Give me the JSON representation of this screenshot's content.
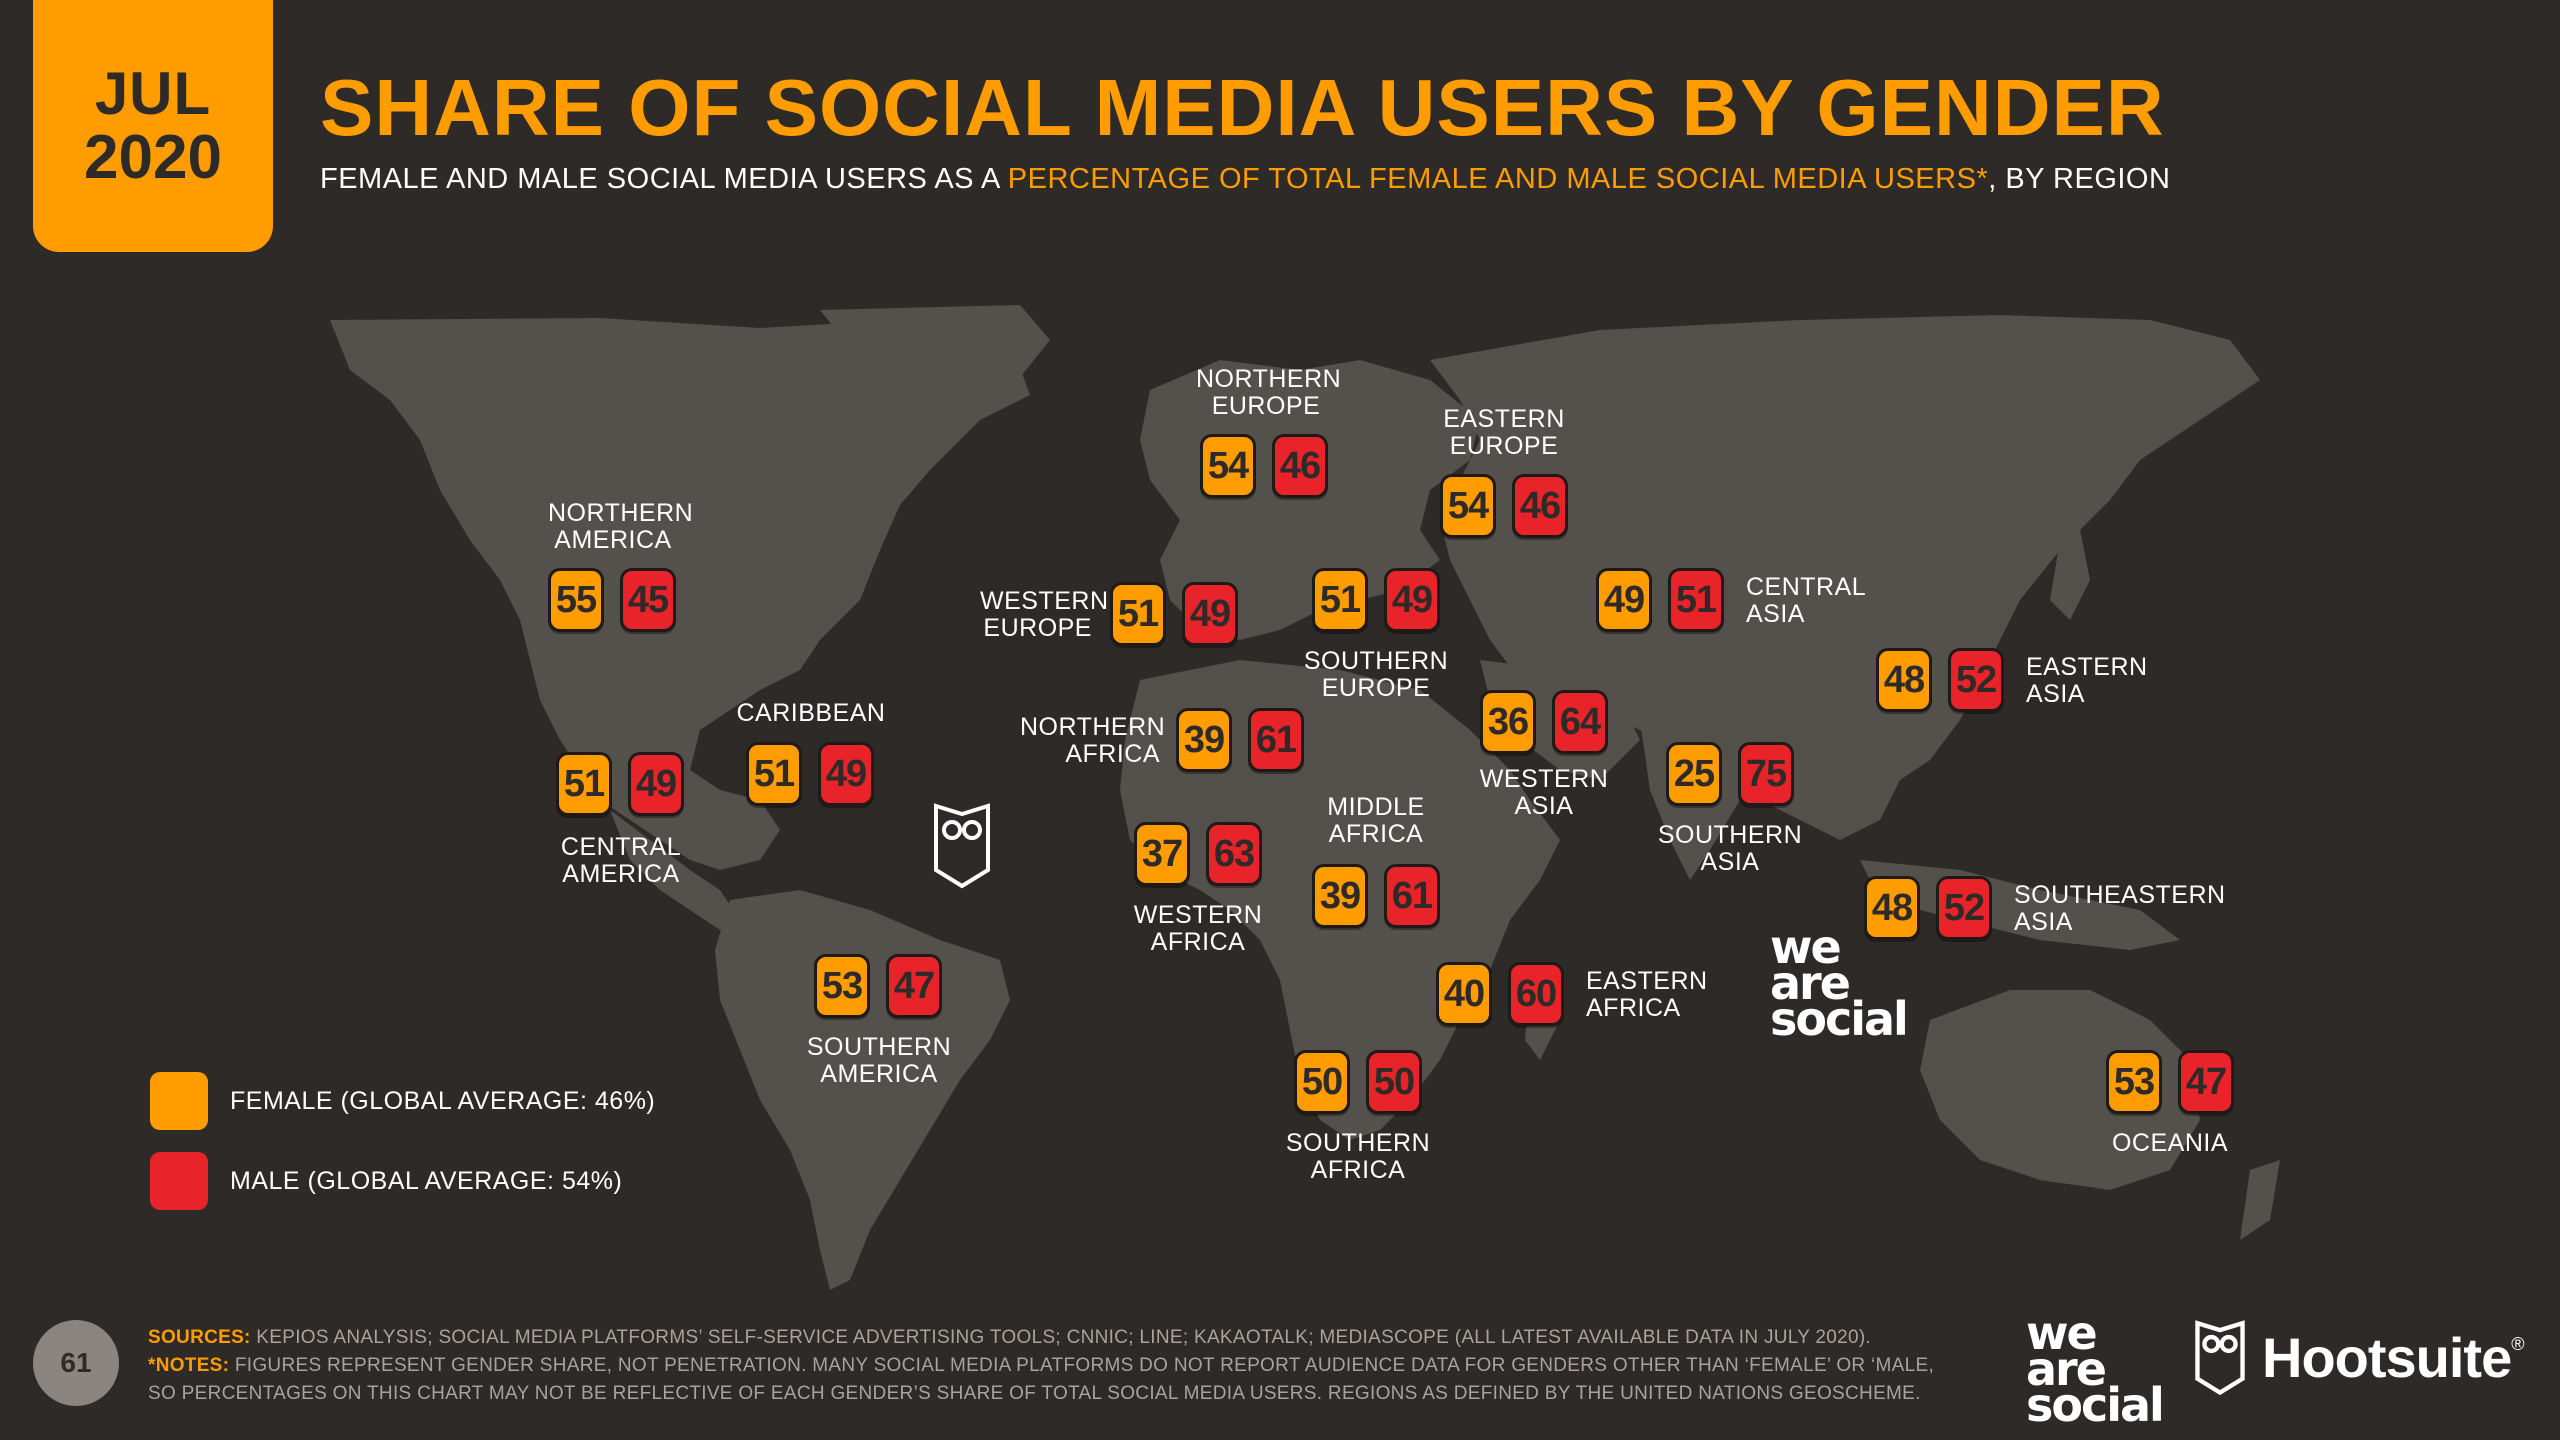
{
  "date_badge": {
    "month": "JUL",
    "year": "2020"
  },
  "title": "SHARE OF SOCIAL MEDIA USERS BY GENDER",
  "subtitle": {
    "part1": "FEMALE AND MALE SOCIAL MEDIA USERS AS A ",
    "highlight": "PERCENTAGE OF TOTAL FEMALE AND MALE SOCIAL MEDIA USERS*",
    "part2": ", BY REGION"
  },
  "colors": {
    "female": "#ff9c00",
    "male": "#e8242a",
    "background": "#2e2a28",
    "land": "#54504c"
  },
  "regions": [
    {
      "id": "northern-america",
      "name_lines": [
        "NORTHERN",
        "AMERICA"
      ],
      "female": 55,
      "male": 45
    },
    {
      "id": "central-america",
      "name_lines": [
        "CENTRAL",
        "AMERICA"
      ],
      "female": 51,
      "male": 49
    },
    {
      "id": "caribbean",
      "name_lines": [
        "CARIBBEAN"
      ],
      "female": 51,
      "male": 49
    },
    {
      "id": "southern-america",
      "name_lines": [
        "SOUTHERN",
        "AMERICA"
      ],
      "female": 53,
      "male": 47
    },
    {
      "id": "northern-europe",
      "name_lines": [
        "NORTHERN",
        "EUROPE"
      ],
      "female": 54,
      "male": 46
    },
    {
      "id": "western-europe",
      "name_lines": [
        "WESTERN",
        "EUROPE"
      ],
      "female": 51,
      "male": 49
    },
    {
      "id": "southern-europe",
      "name_lines": [
        "SOUTHERN",
        "EUROPE"
      ],
      "female": 51,
      "male": 49
    },
    {
      "id": "eastern-europe",
      "name_lines": [
        "EASTERN",
        "EUROPE"
      ],
      "female": 54,
      "male": 46
    },
    {
      "id": "northern-africa",
      "name_lines": [
        "NORTHERN",
        "AFRICA"
      ],
      "female": 39,
      "male": 61
    },
    {
      "id": "western-africa",
      "name_lines": [
        "WESTERN",
        "AFRICA"
      ],
      "female": 37,
      "male": 63
    },
    {
      "id": "middle-africa",
      "name_lines": [
        "MIDDLE",
        "AFRICA"
      ],
      "female": 39,
      "male": 61
    },
    {
      "id": "eastern-africa",
      "name_lines": [
        "EASTERN",
        "AFRICA"
      ],
      "female": 40,
      "male": 60
    },
    {
      "id": "southern-africa",
      "name_lines": [
        "SOUTHERN",
        "AFRICA"
      ],
      "female": 50,
      "male": 50
    },
    {
      "id": "western-asia",
      "name_lines": [
        "WESTERN",
        "ASIA"
      ],
      "female": 36,
      "male": 64
    },
    {
      "id": "central-asia",
      "name_lines": [
        "CENTRAL",
        "ASIA"
      ],
      "female": 49,
      "male": 51
    },
    {
      "id": "southern-asia",
      "name_lines": [
        "SOUTHERN",
        "ASIA"
      ],
      "female": 25,
      "male": 75
    },
    {
      "id": "eastern-asia",
      "name_lines": [
        "EASTERN",
        "ASIA"
      ],
      "female": 48,
      "male": 52
    },
    {
      "id": "southeastern-asia",
      "name_lines": [
        "SOUTHEASTERN",
        "ASIA"
      ],
      "female": 48,
      "male": 52
    },
    {
      "id": "oceania",
      "name_lines": [
        "OCEANIA"
      ],
      "female": 53,
      "male": 47
    }
  ],
  "legend": {
    "female": "FEMALE (GLOBAL AVERAGE: 46%)",
    "male": "MALE (GLOBAL AVERAGE: 54%)"
  },
  "footer": {
    "page_number": "61",
    "sources_tag": "SOURCES:",
    "sources_text": " KEPIOS ANALYSIS; SOCIAL MEDIA PLATFORMS’ SELF-SERVICE ADVERTISING TOOLS; CNNIC; LINE; KAKAOTALK; MEDIASCOPE (ALL LATEST AVAILABLE DATA IN JULY 2020).",
    "notes_tag": "*NOTES:",
    "notes_text": " FIGURES REPRESENT GENDER SHARE, NOT PENETRATION. MANY SOCIAL MEDIA PLATFORMS DO NOT REPORT AUDIENCE DATA FOR GENDERS OTHER THAN ‘FEMALE’ OR ‘MALE,",
    "notes_text2": "SO PERCENTAGES ON THIS CHART MAY NOT BE REFLECTIVE OF EACH GENDER’S SHARE OF TOTAL SOCIAL MEDIA USERS. REGIONS AS DEFINED BY THE UNITED NATIONS GEOSCHEME."
  },
  "logos": {
    "we_are_social": [
      "we",
      "are",
      "social"
    ],
    "hootsuite": "Hootsuite",
    "hootsuite_mark": "®"
  }
}
